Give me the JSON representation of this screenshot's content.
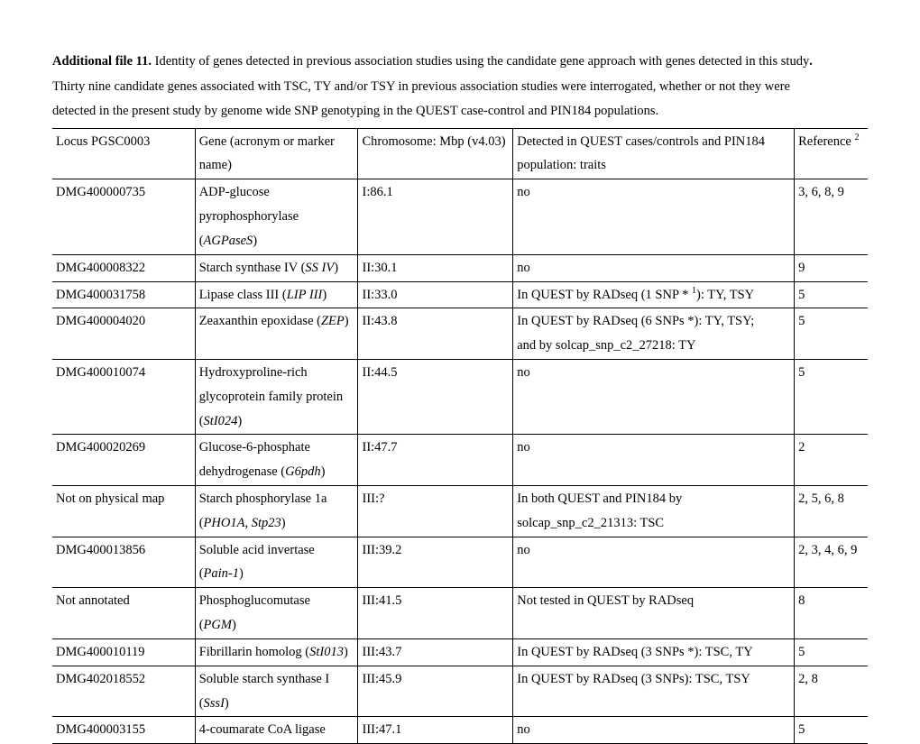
{
  "caption": {
    "lead": "Additional file 11.",
    "line1_rest": " Identity of genes detected in previous association studies using the candidate gene approach with genes detected in this study",
    "line1_dot": ".",
    "line2": "Thirty nine candidate genes associated with TSC, TY and/or TSY in previous association studies were interrogated, whether or not they were",
    "line3": "detected in the present study by genome wide SNP genotyping in the QUEST case-control and PIN184 populations."
  },
  "header": {
    "c1": "Locus PGSC0003",
    "c2a": "Gene (acronym or marker",
    "c2b": "name)",
    "c3": "Chromosome: Mbp (v4.03)",
    "c4a": "Detected in QUEST cases/controls and PIN184",
    "c4b": "population: traits",
    "c5_pre": "Reference ",
    "c5_sup": "2"
  },
  "rows": [
    {
      "c1": "DMG400000735",
      "c2a": "ADP-glucose",
      "c2b": "pyrophosphorylase",
      "c2c_pre": "(",
      "c2c_i": "AGPaseS",
      "c2c_post": ")",
      "c3": "I:86.1",
      "c4": "no",
      "c5": "3, 6, 8, 9"
    },
    {
      "c1": "DMG400008322",
      "c2_pre": "Starch synthase IV (",
      "c2_i": "SS IV",
      "c2_post": ")",
      "c3": "II:30.1",
      "c4": "no",
      "c5": "9"
    },
    {
      "c1": "DMG400031758",
      "c2_pre": "Lipase class III (",
      "c2_i": "LIP III",
      "c2_post": ")",
      "c3": "II:33.0",
      "c4_pre": "In QUEST by RADseq (1 SNP * ",
      "c4_sup": "1",
      "c4_post": "): TY, TSY",
      "c5": "5"
    },
    {
      "c1": "DMG400004020",
      "c2_pre": "Zeaxanthin epoxidase (",
      "c2_i": "ZEP",
      "c2_post": ")",
      "c3": "II:43.8",
      "c4a": "In QUEST by RADseq (6 SNPs *): TY, TSY;",
      "c4b": "and by solcap_snp_c2_27218: TY",
      "c5": "5"
    },
    {
      "c1": "DMG400010074",
      "c2a": "Hydroxyproline-rich",
      "c2b": "glycoprotein family protein",
      "c2c_pre": "(",
      "c2c_i": "StI024",
      "c2c_post": ")",
      "c3": "II:44.5",
      "c4": "no",
      "c5": "5"
    },
    {
      "c1": "DMG400020269",
      "c2a": "Glucose-6-phosphate",
      "c2b_pre": "dehydrogenase (",
      "c2b_i": "G6pdh",
      "c2b_post": ")",
      "c3": "II:47.7",
      "c4": "no",
      "c5": "2"
    },
    {
      "c1": "Not on physical map",
      "c2a": "Starch phosphorylase 1a",
      "c2b_pre": "(",
      "c2b_i": "PHO1A, Stp23",
      "c2b_post": ")",
      "c3": "III:?",
      "c4a": "In both QUEST and PIN184 by",
      "c4b": "solcap_snp_c2_21313: TSC",
      "c5": "2, 5, 6, 8"
    },
    {
      "c1": "DMG400013856",
      "c2a": "Soluble acid invertase",
      "c2b_pre": "(",
      "c2b_i": "Pain-1",
      "c2b_post": ")",
      "c3": "III:39.2",
      "c4": "no",
      "c5": "2, 3, 4, 6, 9"
    },
    {
      "c1": "Not annotated",
      "c2a": "Phosphoglucomutase",
      "c2b_pre": "(",
      "c2b_i": "PGM",
      "c2b_post": ")",
      "c3": "III:41.5",
      "c4": "Not tested in QUEST by RADseq",
      "c5": "8"
    },
    {
      "c1": "DMG400010119",
      "c2_pre": "Fibrillarin homolog (",
      "c2_i": "StI013",
      "c2_post": ")",
      "c3": "III:43.7",
      "c4": "In QUEST by RADseq (3 SNPs *): TSC, TY",
      "c5": "5"
    },
    {
      "c1": "DMG402018552",
      "c2a": "Soluble starch synthase I",
      "c2b_pre": "(",
      "c2b_i": "SssI",
      "c2b_post": ")",
      "c3": "III:45.9",
      "c4": "In QUEST by RADseq (3 SNPs): TSC, TSY",
      "c5": "2, 8"
    },
    {
      "c1": "DMG400003155",
      "c2": "4-coumarate CoA ligase",
      "c3": "III:47.1",
      "c4": "no",
      "c5": "5"
    }
  ]
}
